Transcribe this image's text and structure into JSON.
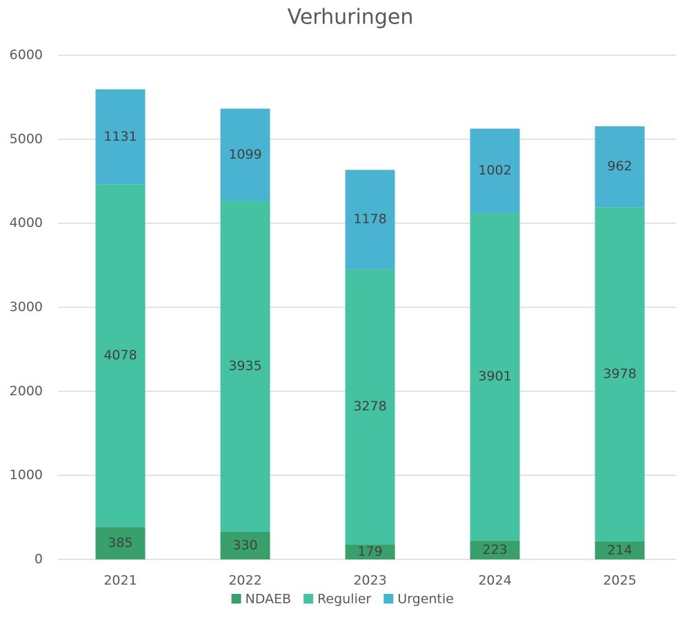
{
  "chart_data": {
    "type": "stacked_bar",
    "title": "Verhuringen",
    "categories": [
      "2021",
      "2022",
      "2023",
      "2024",
      "2025"
    ],
    "series": [
      {
        "name": "NDAEB",
        "color": "#3aa06b",
        "values": [
          385,
          330,
          179,
          223,
          214
        ]
      },
      {
        "name": "Regulier",
        "color": "#45c2a1",
        "values": [
          4078,
          3935,
          3278,
          3901,
          3978
        ]
      },
      {
        "name": "Urgentie",
        "color": "#4ab3d2",
        "values": [
          1131,
          1099,
          1178,
          1002,
          962
        ]
      }
    ],
    "ylim": [
      0,
      6000
    ],
    "yticks": [
      0,
      1000,
      2000,
      3000,
      4000,
      5000,
      6000
    ],
    "grid": true,
    "legend": "bottom"
  }
}
